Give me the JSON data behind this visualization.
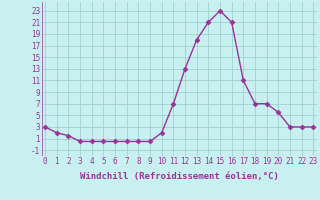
{
  "x": [
    0,
    1,
    2,
    3,
    4,
    5,
    6,
    7,
    8,
    9,
    10,
    11,
    12,
    13,
    14,
    15,
    16,
    17,
    18,
    19,
    20,
    21,
    22,
    23
  ],
  "y": [
    3,
    2,
    1.5,
    0.5,
    0.5,
    0.5,
    0.5,
    0.5,
    0.5,
    0.5,
    2,
    7,
    13,
    18,
    21,
    23,
    21,
    11,
    7,
    7,
    5.5,
    3,
    3,
    3
  ],
  "line_color": "#993399",
  "marker_color": "#993399",
  "bg_color": "#c8f0f0",
  "grid_color": "#a0d0d0",
  "xlabel": "Windchill (Refroidissement éolien,°C)",
  "yticks": [
    -1,
    1,
    3,
    5,
    7,
    9,
    11,
    13,
    15,
    17,
    19,
    21,
    23
  ],
  "ylabel_ticks": [
    "-1",
    "1",
    "3",
    "5",
    "7",
    "9",
    "11",
    "13",
    "15",
    "17",
    "19",
    "21",
    "23"
  ],
  "xticks": [
    0,
    1,
    2,
    3,
    4,
    5,
    6,
    7,
    8,
    9,
    10,
    11,
    12,
    13,
    14,
    15,
    16,
    17,
    18,
    19,
    20,
    21,
    22,
    23
  ],
  "ylim": [
    -2,
    24.5
  ],
  "xlim": [
    -0.3,
    23.3
  ],
  "xlabel_fontsize": 6.5,
  "tick_fontsize": 5.5,
  "line_width": 1.0,
  "marker_size": 2.5
}
